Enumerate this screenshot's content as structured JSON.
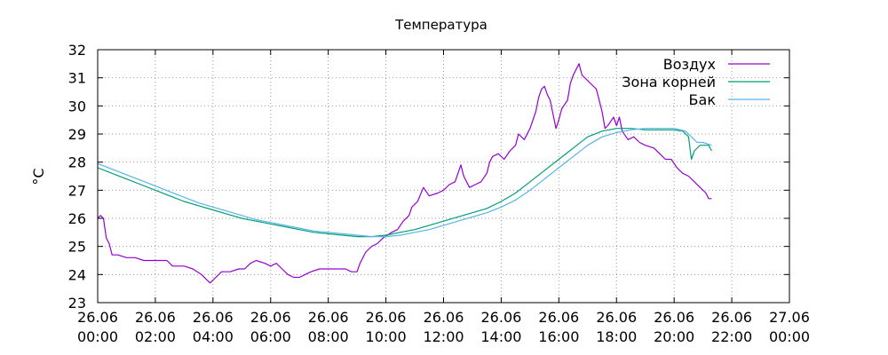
{
  "chart_data": {
    "type": "line",
    "title": "Температура",
    "ylabel": "°C",
    "xlabel": "",
    "ylim": [
      23,
      32
    ],
    "xlim": [
      0,
      24
    ],
    "y_ticks": [
      23,
      24,
      25,
      26,
      27,
      28,
      29,
      30,
      31,
      32
    ],
    "x_ticks": [
      {
        "x": 0,
        "date": "26.06",
        "time": "00:00"
      },
      {
        "x": 2,
        "date": "26.06",
        "time": "02:00"
      },
      {
        "x": 4,
        "date": "26.06",
        "time": "04:00"
      },
      {
        "x": 6,
        "date": "26.06",
        "time": "06:00"
      },
      {
        "x": 8,
        "date": "26.06",
        "time": "08:00"
      },
      {
        "x": 10,
        "date": "26.06",
        "time": "10:00"
      },
      {
        "x": 12,
        "date": "26.06",
        "time": "12:00"
      },
      {
        "x": 14,
        "date": "26.06",
        "time": "14:00"
      },
      {
        "x": 16,
        "date": "26.06",
        "time": "16:00"
      },
      {
        "x": 18,
        "date": "26.06",
        "time": "18:00"
      },
      {
        "x": 20,
        "date": "26.06",
        "time": "20:00"
      },
      {
        "x": 22,
        "date": "26.06",
        "time": "22:00"
      },
      {
        "x": 24,
        "date": "27.06",
        "time": "00:00"
      }
    ],
    "grid": true,
    "legend_position": "top-right",
    "series": [
      {
        "name": "Воздух",
        "color": "#9400d3",
        "points": [
          [
            0.0,
            26.0
          ],
          [
            0.1,
            26.1
          ],
          [
            0.2,
            26.0
          ],
          [
            0.3,
            25.3
          ],
          [
            0.4,
            25.1
          ],
          [
            0.5,
            24.7
          ],
          [
            0.7,
            24.7
          ],
          [
            1.0,
            24.6
          ],
          [
            1.3,
            24.6
          ],
          [
            1.6,
            24.5
          ],
          [
            2.0,
            24.5
          ],
          [
            2.4,
            24.5
          ],
          [
            2.6,
            24.3
          ],
          [
            3.0,
            24.3
          ],
          [
            3.3,
            24.2
          ],
          [
            3.6,
            24.0
          ],
          [
            3.8,
            23.8
          ],
          [
            3.9,
            23.7
          ],
          [
            4.1,
            23.9
          ],
          [
            4.3,
            24.1
          ],
          [
            4.6,
            24.1
          ],
          [
            4.9,
            24.2
          ],
          [
            5.1,
            24.2
          ],
          [
            5.3,
            24.4
          ],
          [
            5.5,
            24.5
          ],
          [
            5.8,
            24.4
          ],
          [
            6.0,
            24.3
          ],
          [
            6.2,
            24.4
          ],
          [
            6.4,
            24.2
          ],
          [
            6.6,
            24.0
          ],
          [
            6.8,
            23.9
          ],
          [
            7.0,
            23.9
          ],
          [
            7.2,
            24.0
          ],
          [
            7.4,
            24.1
          ],
          [
            7.7,
            24.2
          ],
          [
            8.0,
            24.2
          ],
          [
            8.3,
            24.2
          ],
          [
            8.6,
            24.2
          ],
          [
            8.8,
            24.1
          ],
          [
            9.0,
            24.1
          ],
          [
            9.1,
            24.4
          ],
          [
            9.3,
            24.8
          ],
          [
            9.5,
            25.0
          ],
          [
            9.7,
            25.1
          ],
          [
            9.9,
            25.3
          ],
          [
            10.2,
            25.5
          ],
          [
            10.4,
            25.6
          ],
          [
            10.6,
            25.9
          ],
          [
            10.8,
            26.1
          ],
          [
            10.9,
            26.4
          ],
          [
            11.1,
            26.6
          ],
          [
            11.3,
            27.1
          ],
          [
            11.5,
            26.8
          ],
          [
            11.8,
            26.9
          ],
          [
            12.0,
            27.0
          ],
          [
            12.2,
            27.2
          ],
          [
            12.4,
            27.3
          ],
          [
            12.6,
            27.9
          ],
          [
            12.7,
            27.5
          ],
          [
            12.9,
            27.1
          ],
          [
            13.1,
            27.2
          ],
          [
            13.3,
            27.3
          ],
          [
            13.5,
            27.6
          ],
          [
            13.6,
            28.0
          ],
          [
            13.7,
            28.2
          ],
          [
            13.9,
            28.3
          ],
          [
            14.1,
            28.1
          ],
          [
            14.3,
            28.4
          ],
          [
            14.5,
            28.6
          ],
          [
            14.6,
            29.0
          ],
          [
            14.8,
            28.8
          ],
          [
            15.0,
            29.2
          ],
          [
            15.2,
            29.8
          ],
          [
            15.3,
            30.3
          ],
          [
            15.4,
            30.6
          ],
          [
            15.5,
            30.7
          ],
          [
            15.6,
            30.4
          ],
          [
            15.7,
            30.2
          ],
          [
            15.8,
            29.7
          ],
          [
            15.9,
            29.2
          ],
          [
            16.0,
            29.5
          ],
          [
            16.1,
            29.9
          ],
          [
            16.3,
            30.2
          ],
          [
            16.4,
            30.8
          ],
          [
            16.5,
            31.1
          ],
          [
            16.6,
            31.3
          ],
          [
            16.7,
            31.5
          ],
          [
            16.8,
            31.1
          ],
          [
            17.0,
            30.9
          ],
          [
            17.1,
            30.8
          ],
          [
            17.3,
            30.6
          ],
          [
            17.4,
            30.2
          ],
          [
            17.5,
            29.8
          ],
          [
            17.6,
            29.2
          ],
          [
            17.7,
            29.3
          ],
          [
            17.9,
            29.6
          ],
          [
            18.0,
            29.3
          ],
          [
            18.1,
            29.6
          ],
          [
            18.2,
            29.1
          ],
          [
            18.4,
            28.8
          ],
          [
            18.6,
            28.9
          ],
          [
            18.8,
            28.7
          ],
          [
            19.0,
            28.6
          ],
          [
            19.3,
            28.5
          ],
          [
            19.5,
            28.3
          ],
          [
            19.7,
            28.1
          ],
          [
            19.9,
            28.1
          ],
          [
            20.1,
            27.8
          ],
          [
            20.3,
            27.6
          ],
          [
            20.5,
            27.5
          ],
          [
            20.7,
            27.3
          ],
          [
            20.9,
            27.1
          ],
          [
            21.1,
            26.9
          ],
          [
            21.2,
            26.7
          ],
          [
            21.3,
            26.7
          ]
        ]
      },
      {
        "name": "Зона корней",
        "color": "#009e73",
        "points": [
          [
            0.0,
            27.8
          ],
          [
            0.5,
            27.6
          ],
          [
            1.0,
            27.4
          ],
          [
            1.5,
            27.2
          ],
          [
            2.0,
            27.0
          ],
          [
            2.5,
            26.8
          ],
          [
            3.0,
            26.6
          ],
          [
            3.5,
            26.45
          ],
          [
            4.0,
            26.3
          ],
          [
            4.5,
            26.15
          ],
          [
            5.0,
            26.0
          ],
          [
            5.5,
            25.9
          ],
          [
            6.0,
            25.8
          ],
          [
            6.5,
            25.7
          ],
          [
            7.0,
            25.6
          ],
          [
            7.5,
            25.5
          ],
          [
            8.0,
            25.45
          ],
          [
            8.5,
            25.4
          ],
          [
            9.0,
            25.35
          ],
          [
            9.5,
            25.35
          ],
          [
            10.0,
            25.4
          ],
          [
            10.5,
            25.5
          ],
          [
            11.0,
            25.6
          ],
          [
            11.5,
            25.75
          ],
          [
            12.0,
            25.9
          ],
          [
            12.5,
            26.05
          ],
          [
            13.0,
            26.2
          ],
          [
            13.5,
            26.35
          ],
          [
            14.0,
            26.6
          ],
          [
            14.5,
            26.9
          ],
          [
            15.0,
            27.3
          ],
          [
            15.5,
            27.7
          ],
          [
            16.0,
            28.1
          ],
          [
            16.5,
            28.5
          ],
          [
            17.0,
            28.9
          ],
          [
            17.5,
            29.1
          ],
          [
            18.0,
            29.2
          ],
          [
            18.5,
            29.2
          ],
          [
            19.0,
            29.15
          ],
          [
            19.5,
            29.15
          ],
          [
            20.0,
            29.15
          ],
          [
            20.3,
            29.1
          ],
          [
            20.5,
            28.9
          ],
          [
            20.6,
            28.1
          ],
          [
            20.7,
            28.4
          ],
          [
            20.9,
            28.6
          ],
          [
            21.1,
            28.6
          ],
          [
            21.2,
            28.6
          ],
          [
            21.3,
            28.4
          ]
        ]
      },
      {
        "name": "Бак",
        "color": "#56b4e9",
        "points": [
          [
            0.0,
            27.95
          ],
          [
            0.5,
            27.75
          ],
          [
            1.0,
            27.55
          ],
          [
            1.5,
            27.35
          ],
          [
            2.0,
            27.15
          ],
          [
            2.5,
            26.95
          ],
          [
            3.0,
            26.75
          ],
          [
            3.5,
            26.55
          ],
          [
            4.0,
            26.4
          ],
          [
            4.5,
            26.25
          ],
          [
            5.0,
            26.1
          ],
          [
            5.5,
            25.95
          ],
          [
            6.0,
            25.85
          ],
          [
            6.5,
            25.75
          ],
          [
            7.0,
            25.65
          ],
          [
            7.5,
            25.55
          ],
          [
            8.0,
            25.5
          ],
          [
            8.5,
            25.45
          ],
          [
            9.0,
            25.4
          ],
          [
            9.5,
            25.35
          ],
          [
            10.0,
            25.35
          ],
          [
            10.5,
            25.4
          ],
          [
            11.0,
            25.5
          ],
          [
            11.5,
            25.6
          ],
          [
            12.0,
            25.75
          ],
          [
            12.5,
            25.9
          ],
          [
            13.0,
            26.05
          ],
          [
            13.5,
            26.2
          ],
          [
            14.0,
            26.4
          ],
          [
            14.5,
            26.65
          ],
          [
            15.0,
            27.0
          ],
          [
            15.5,
            27.4
          ],
          [
            16.0,
            27.8
          ],
          [
            16.5,
            28.2
          ],
          [
            17.0,
            28.6
          ],
          [
            17.5,
            28.9
          ],
          [
            18.0,
            29.05
          ],
          [
            18.5,
            29.15
          ],
          [
            19.0,
            29.2
          ],
          [
            19.5,
            29.2
          ],
          [
            20.0,
            29.2
          ],
          [
            20.4,
            29.1
          ],
          [
            20.6,
            28.9
          ],
          [
            20.8,
            28.7
          ],
          [
            21.0,
            28.7
          ],
          [
            21.3,
            28.6
          ]
        ]
      }
    ]
  }
}
